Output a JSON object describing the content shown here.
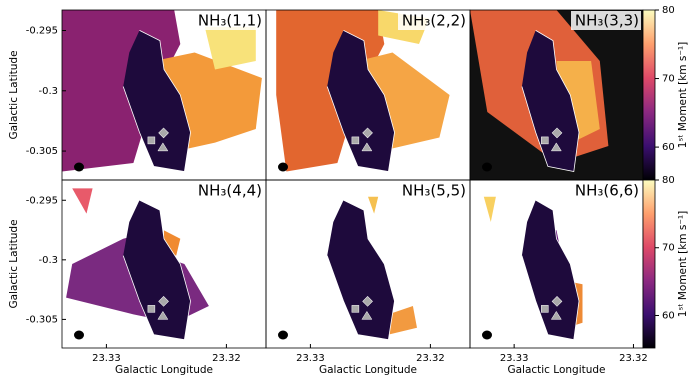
{
  "chart_data": [
    {
      "type": "heatmap",
      "title": "NH₃(1,1)",
      "ylabel": "Galactic Latitude",
      "ylim": [
        -0.3074,
        -0.2933
      ],
      "yticks": [
        -0.295,
        -0.3,
        -0.305
      ]
    },
    {
      "type": "heatmap",
      "title": "NH₃(2,2)"
    },
    {
      "type": "heatmap",
      "title": "NH₃(3,3)"
    },
    {
      "type": "colorbar",
      "label": "1ˢᵗ Moment [km s⁻¹]",
      "lim": [
        55.2,
        80
      ],
      "ticks": [
        60,
        70,
        80
      ],
      "colors": [
        "#000004",
        "#3b0f70",
        "#8c2981",
        "#de4968",
        "#fe9f6d",
        "#fcfdbf"
      ]
    },
    {
      "type": "heatmap",
      "title": "NH₃(4,4)",
      "xlabel": "Galactic Longitude",
      "ylabel": "Galactic Latitude",
      "xlim": [
        23.3337,
        23.3167
      ],
      "xticks": [
        23.33,
        23.32
      ],
      "ylim": [
        -0.3074,
        -0.2933
      ],
      "yticks": [
        -0.295,
        -0.3,
        -0.305
      ]
    },
    {
      "type": "heatmap",
      "title": "NH₃(5,5)",
      "xlabel": "Galactic Longitude",
      "xlim": [
        23.3337,
        23.3167
      ],
      "xticks": [
        23.33,
        23.32
      ]
    },
    {
      "type": "heatmap",
      "title": "NH₃(6,6)",
      "xlabel": "Galactic Longitude",
      "xlim": [
        23.3337,
        23.3192
      ],
      "xticks": [
        23.33,
        23.32
      ]
    },
    {
      "type": "colorbar",
      "label": "1ˢᵗ Moment [km s⁻¹]",
      "lim": [
        55.2,
        80
      ],
      "ticks": [
        60,
        70,
        80
      ],
      "colors": [
        "#000004",
        "#3b0f70",
        "#8c2981",
        "#de4968",
        "#fe9f6d",
        "#fcfdbf"
      ]
    }
  ]
}
